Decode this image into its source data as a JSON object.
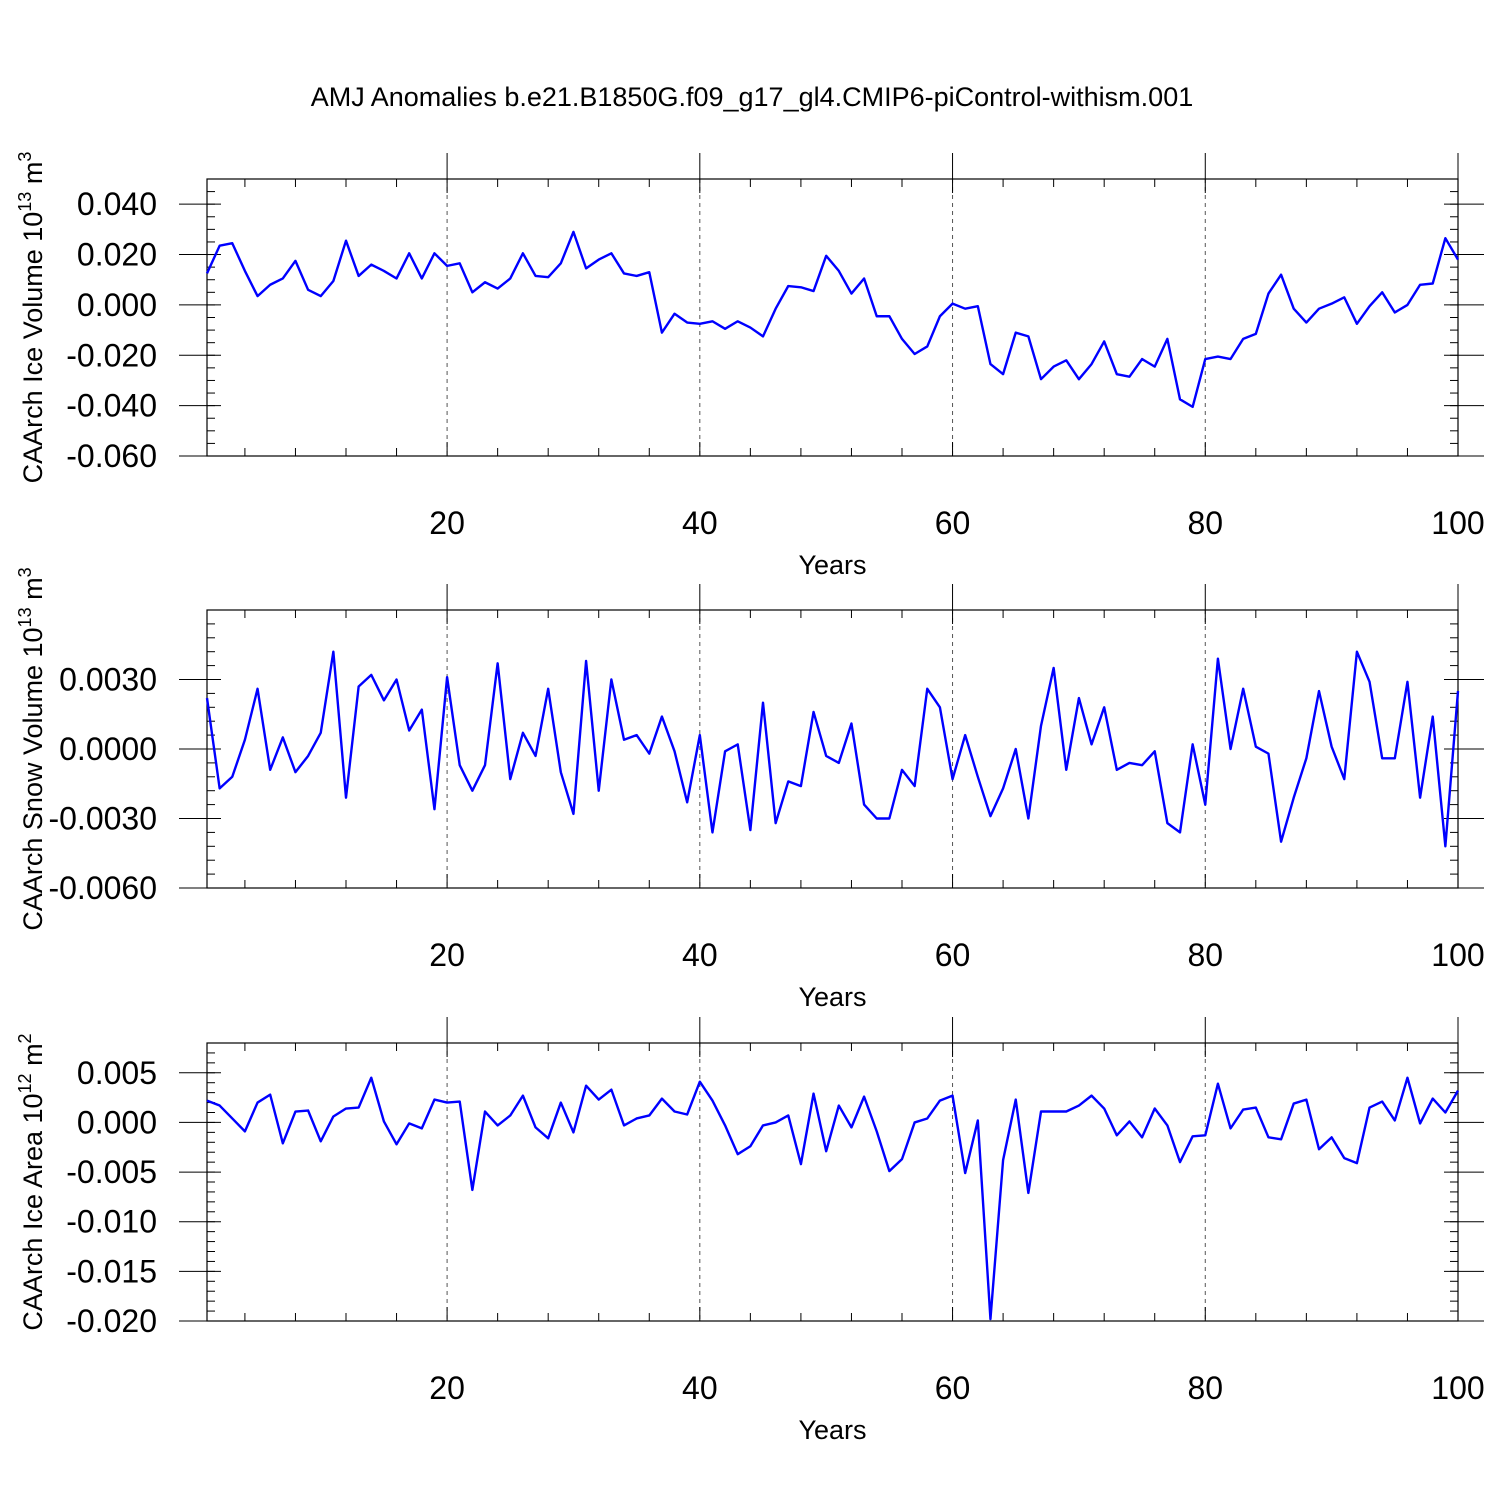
{
  "title": "AMJ Anomalies b.e21.B1850G.f09_g17_gl4.CMIP6-piControl-withism.001",
  "chart_data": [
    {
      "type": "line",
      "ylabel": "CAArch Ice Volume 10",
      "ylabel_exp": "13",
      "ylabel_unit": " m",
      "ylabel_unit_exp": "3",
      "xlabel": "Years",
      "xlim": [
        1,
        100
      ],
      "ylim": [
        -0.06,
        0.05
      ],
      "yticks": [
        -0.06,
        -0.04,
        -0.02,
        0.0,
        0.02,
        0.04
      ],
      "ytick_labels": [
        "-0.060",
        "-0.040",
        "-0.020",
        "0.000",
        "0.020",
        "0.040"
      ],
      "yminor_step": 0.005,
      "xticks": [
        20,
        40,
        60,
        80,
        100
      ],
      "xtick_labels": [
        "20",
        "40",
        "60",
        "80",
        "100"
      ],
      "xminor_step": 4,
      "grid": true,
      "color": "#0000ff",
      "x_start": 1,
      "values": [
        0.0125,
        0.0235,
        0.0245,
        0.0135,
        0.0035,
        0.008,
        0.0105,
        0.0175,
        0.006,
        0.0035,
        0.0095,
        0.0255,
        0.0115,
        0.016,
        0.0135,
        0.0105,
        0.0205,
        0.0105,
        0.0205,
        0.0155,
        0.0165,
        0.005,
        0.009,
        0.0065,
        0.0105,
        0.0205,
        0.0115,
        0.011,
        0.0165,
        0.029,
        0.0145,
        0.018,
        0.0205,
        0.0125,
        0.0115,
        0.013,
        -0.011,
        -0.0035,
        -0.007,
        -0.0075,
        -0.0065,
        -0.0095,
        -0.0065,
        -0.009,
        -0.0125,
        -0.0015,
        0.0075,
        0.007,
        0.0055,
        0.0195,
        0.0135,
        0.0045,
        0.0105,
        -0.0045,
        -0.0045,
        -0.0135,
        -0.0195,
        -0.0165,
        -0.0045,
        0.0005,
        -0.0015,
        -0.0005,
        -0.0235,
        -0.0275,
        -0.011,
        -0.0125,
        -0.0295,
        -0.0245,
        -0.022,
        -0.0295,
        -0.0235,
        -0.0145,
        -0.0275,
        -0.0285,
        -0.0215,
        -0.0245,
        -0.0135,
        -0.0375,
        -0.0405,
        -0.0215,
        -0.0205,
        -0.0215,
        -0.0135,
        -0.0115,
        0.0045,
        0.012,
        -0.0015,
        -0.007,
        -0.0015,
        0.0005,
        0.003,
        -0.0075,
        -0.0005,
        0.005,
        -0.003,
        0.0,
        0.008,
        0.0085,
        0.0265,
        0.018
      ]
    },
    {
      "type": "line",
      "ylabel": "CAArch Snow Volume 10",
      "ylabel_exp": "13",
      "ylabel_unit": " m",
      "ylabel_unit_exp": "3",
      "xlabel": "Years",
      "xlim": [
        1,
        100
      ],
      "ylim": [
        -0.006,
        0.006
      ],
      "yticks": [
        -0.006,
        -0.003,
        0.0,
        0.003
      ],
      "ytick_labels": [
        "-0.0060",
        "-0.0030",
        "0.0000",
        "0.0030"
      ],
      "yminor_step": 0.0006,
      "xticks": [
        20,
        40,
        60,
        80,
        100
      ],
      "xtick_labels": [
        "20",
        "40",
        "60",
        "80",
        "100"
      ],
      "xminor_step": 4,
      "grid": true,
      "color": "#0000ff",
      "x_start": 1,
      "values": [
        0.0022,
        -0.0017,
        -0.0012,
        0.0004,
        0.0026,
        -0.0009,
        0.0005,
        -0.001,
        -0.0003,
        0.0007,
        0.0042,
        -0.0021,
        0.0027,
        0.0032,
        0.0021,
        0.003,
        0.0008,
        0.0017,
        -0.0026,
        0.0031,
        -0.0007,
        -0.0018,
        -0.0007,
        0.0037,
        -0.0013,
        0.0007,
        -0.0003,
        0.0026,
        -0.001,
        -0.0028,
        0.0038,
        -0.0018,
        0.003,
        0.0004,
        0.0006,
        -0.0002,
        0.0014,
        -0.0001,
        -0.0023,
        0.0006,
        -0.0036,
        -0.0001,
        0.0002,
        -0.0035,
        0.002,
        -0.0032,
        -0.0014,
        -0.0016,
        0.0016,
        -0.0003,
        -0.0006,
        0.0011,
        -0.0024,
        -0.003,
        -0.003,
        -0.0009,
        -0.0016,
        0.0026,
        0.0018,
        -0.0013,
        0.0006,
        -0.0012,
        -0.0029,
        -0.0017,
        0.0,
        -0.003,
        0.001,
        0.0035,
        -0.0009,
        0.0022,
        0.0002,
        0.0018,
        -0.0009,
        -0.0006,
        -0.0007,
        -0.0001,
        -0.0032,
        -0.0036,
        0.0002,
        -0.0024,
        0.0039,
        0.0,
        0.0026,
        0.0001,
        -0.0002,
        -0.004,
        -0.0021,
        -0.0004,
        0.0025,
        0.0001,
        -0.0013,
        0.0042,
        0.0029,
        -0.0004,
        -0.0004,
        0.0029,
        -0.0021,
        0.0014,
        -0.0042,
        0.0025
      ]
    },
    {
      "type": "line",
      "ylabel": "CAArch Ice Area 10",
      "ylabel_exp": "12",
      "ylabel_unit": " m",
      "ylabel_unit_exp": "2",
      "xlabel": "Years",
      "xlim": [
        1,
        100
      ],
      "ylim": [
        -0.02,
        0.008
      ],
      "yticks": [
        -0.02,
        -0.015,
        -0.01,
        -0.005,
        0.0,
        0.005
      ],
      "ytick_labels": [
        "-0.020",
        "-0.015",
        "-0.010",
        "-0.005",
        "0.000",
        "0.005"
      ],
      "yminor_step": 0.001,
      "xticks": [
        20,
        40,
        60,
        80,
        100
      ],
      "xtick_labels": [
        "20",
        "40",
        "60",
        "80",
        "100"
      ],
      "xminor_step": 4,
      "grid": true,
      "color": "#0000ff",
      "x_start": 1,
      "values": [
        0.0022,
        0.0017,
        0.0004,
        -0.0009,
        0.002,
        0.0028,
        -0.0021,
        0.0011,
        0.0012,
        -0.0019,
        0.0006,
        0.0014,
        0.0015,
        0.0045,
        0.0001,
        -0.0022,
        -0.0001,
        -0.0006,
        0.0023,
        0.002,
        0.0021,
        -0.0068,
        0.0011,
        -0.0003,
        0.0007,
        0.0027,
        -0.0005,
        -0.0016,
        0.002,
        -0.001,
        0.0037,
        0.0023,
        0.0033,
        -0.0003,
        0.0004,
        0.0007,
        0.0024,
        0.0011,
        0.0008,
        0.0041,
        0.0022,
        -0.0003,
        -0.0032,
        -0.0024,
        -0.0003,
        0.0,
        0.0007,
        -0.0042,
        0.0029,
        -0.0029,
        0.0017,
        -0.0005,
        0.0026,
        -0.0009,
        -0.0049,
        -0.0037,
        0.0,
        0.0004,
        0.0022,
        0.0027,
        -0.0051,
        0.0002,
        -0.0198,
        -0.0038,
        0.0023,
        -0.0071,
        0.0011,
        0.0011,
        0.0011,
        0.0017,
        0.0027,
        0.0014,
        -0.0013,
        0.0001,
        -0.0015,
        0.0014,
        -0.0003,
        -0.004,
        -0.0014,
        -0.0013,
        0.0039,
        -0.0006,
        0.0013,
        0.0015,
        -0.0015,
        -0.0017,
        0.0019,
        0.0023,
        -0.0027,
        -0.0015,
        -0.0036,
        -0.0041,
        0.0015,
        0.0021,
        0.0002,
        0.0045,
        -0.0001,
        0.0024,
        0.001,
        0.0032
      ]
    }
  ]
}
